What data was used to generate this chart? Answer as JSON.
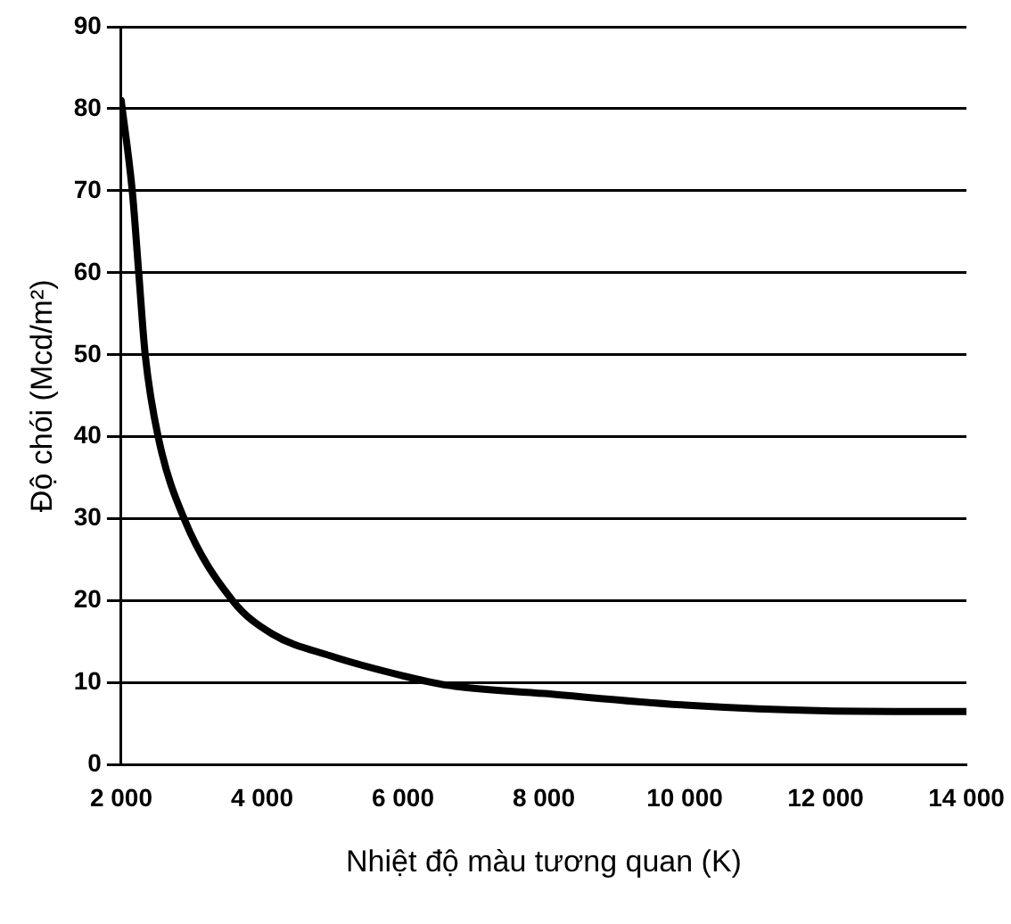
{
  "chart_data": {
    "type": "line",
    "xlabel": "Nhiệt độ màu tương quan (K)",
    "ylabel": "Độ chói (Mcd/m²)",
    "x": [
      2000,
      2157,
      2249,
      2341,
      2525,
      2894,
      3585,
      4138,
      4968,
      5981,
      6639,
      8000,
      10000,
      12000,
      14000
    ],
    "series": [
      {
        "color": "#000000",
        "values": [
          81,
          70,
          60,
          50,
          40,
          30,
          20,
          16,
          13.3,
          10.9,
          9.7,
          8.7,
          7.3,
          6.6,
          6.5
        ]
      }
    ],
    "xlim": [
      2000,
      14000
    ],
    "ylim": [
      0,
      90
    ],
    "xticks": [
      {
        "value": 2000,
        "label": "2 000"
      },
      {
        "value": 4000,
        "label": "4 000"
      },
      {
        "value": 6000,
        "label": "6 000"
      },
      {
        "value": 8000,
        "label": "8 000"
      },
      {
        "value": 10000,
        "label": "10 000"
      },
      {
        "value": 12000,
        "label": "12 000"
      },
      {
        "value": 14000,
        "label": "14 000"
      }
    ],
    "yticks": [
      0,
      10,
      20,
      30,
      40,
      50,
      60,
      70,
      80,
      90
    ],
    "grid": "y",
    "legend": false,
    "marker": "none",
    "line_style": "solid"
  }
}
